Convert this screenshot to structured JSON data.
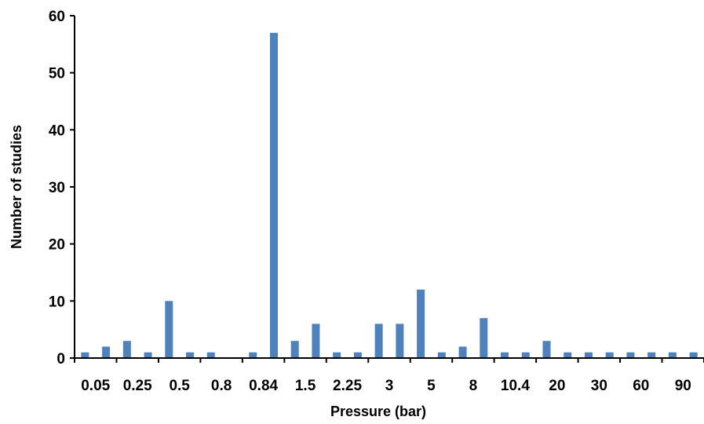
{
  "chart_data": {
    "type": "bar",
    "title": "",
    "xlabel": "Pressure (bar)",
    "ylabel": "Number of studies",
    "ylim": [
      0,
      60
    ],
    "yticks": [
      "0",
      "10",
      "20",
      "30",
      "40",
      "50",
      "60"
    ],
    "grid": false,
    "legend": "none",
    "bar_color": "#4f81bd",
    "x_tick_labels": [
      "0.05",
      "0.25",
      "0.5",
      "0.8",
      "0.84",
      "1.5",
      "2.25",
      "3",
      "5",
      "8",
      "10.4",
      "20",
      "30",
      "60",
      "90"
    ],
    "values": [
      1,
      2,
      3,
      1,
      10,
      1,
      1,
      0,
      1,
      57,
      3,
      6,
      1,
      1,
      6,
      6,
      12,
      1,
      2,
      7,
      1,
      1,
      3,
      1,
      1,
      1,
      1,
      1,
      1,
      1
    ]
  }
}
